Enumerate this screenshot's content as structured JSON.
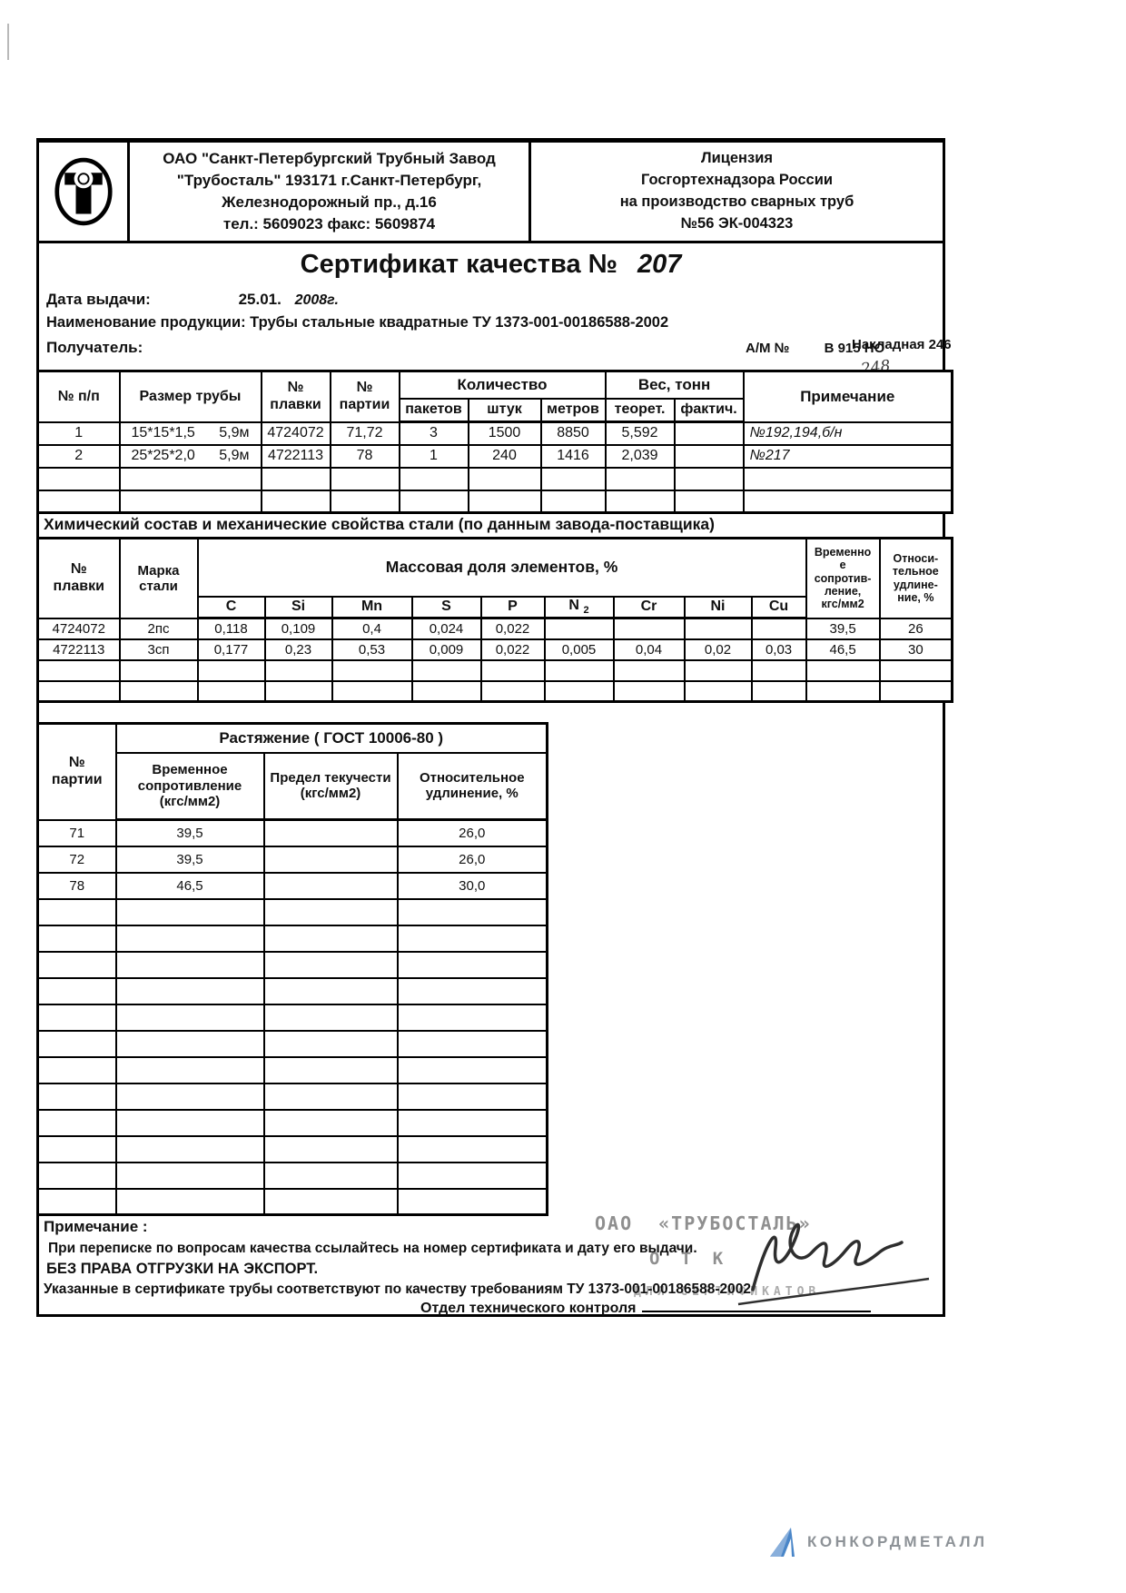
{
  "header": {
    "company": [
      "ОАО \"Санкт-Петербургский Трубный Завод",
      "\"Трубосталь\"  193171  г.Санкт-Петербург,",
      "Железнодорожный пр., д.16",
      "тел.: 5609023   факс: 5609874"
    ],
    "license": [
      "Лицензия",
      "Госгортехнадзора России",
      "на производство сварных труб",
      "№56   ЭК-004323"
    ]
  },
  "title": {
    "label": "Сертификат качества №",
    "number": "207"
  },
  "meta": {
    "date_label": "Дата выдачи:",
    "date_value": "25.01.",
    "date_year": "2008г.",
    "product_line": "Наименование продукции: Трубы стальные квадратные ТУ 1373-001-00186588-2002",
    "receiver_label": "Получатель:",
    "am_label": "А/М №",
    "am_value": "В 915 НО",
    "invoice": "Накладная 246",
    "invoice_hw": "248"
  },
  "main_table": {
    "h_num": "№ п/п",
    "h_size": "Размер трубы",
    "h_melt": "№\nплавки",
    "h_party": "№\nпартии",
    "h_qty": "Количество",
    "h_packs": "пакетов",
    "h_pcs": "штук",
    "h_m": "метров",
    "h_weight": "Вес, тонн",
    "h_theor": "теорет.",
    "h_fact": "фактич.",
    "h_note": "Примечание",
    "rows": [
      {
        "num": "1",
        "size": "15*15*1,5",
        "len": "5,9м",
        "melt": "4724072",
        "party": "71,72",
        "packs": "3",
        "pcs": "1500",
        "m": "8850",
        "theor": "5,592",
        "fact": "",
        "note": "№192,194,б/н"
      },
      {
        "num": "2",
        "size": "25*25*2,0",
        "len": "5,9м",
        "melt": "4722113",
        "party": "78",
        "packs": "1",
        "pcs": "240",
        "m": "1416",
        "theor": "2,039",
        "fact": "",
        "note": "№217"
      }
    ]
  },
  "chem": {
    "section_title": "Химический состав и механические свойства стали (по данным завода-поставщика)",
    "h_melt": "№\nплавки",
    "h_grade": "Марка\nстали",
    "h_mass": "Массовая доля элементов, %",
    "elements": [
      "C",
      "Si",
      "Mn",
      "S",
      "P",
      "N",
      "Cr",
      "Ni",
      "Cu"
    ],
    "n_sub": "2",
    "h_tensile": "Временно\nе\nсопротив-\nление,\nкгс/мм2",
    "h_elong": "Относи-\nтельное\nудлине-\nние, %",
    "rows": [
      {
        "melt": "4724072",
        "grade": "2пс",
        "c": "0,118",
        "si": "0,109",
        "mn": "0,4",
        "s": "0,024",
        "p": "0,022",
        "n": "",
        "cr": "",
        "ni": "",
        "cu": "",
        "tensile": "39,5",
        "elong": "26"
      },
      {
        "melt": "4722113",
        "grade": "3сп",
        "c": "0,177",
        "si": "0,23",
        "mn": "0,53",
        "s": "0,009",
        "p": "0,022",
        "n": "0,005",
        "cr": "0,04",
        "ni": "0,02",
        "cu": "0,03",
        "tensile": "46,5",
        "elong": "30"
      }
    ]
  },
  "tension": {
    "title": "Растяжение ( ГОСТ 10006-80 )",
    "h_party": "№\nпартии",
    "h_tensile": "Временное\nсопротивление\n(кгс/мм2)",
    "h_yield": "Предел текучести\n(кгс/мм2)",
    "h_elong": "Относительное\nудлинение, %",
    "rows": [
      {
        "party": "71",
        "tensile": "39,5",
        "yield": "",
        "elong": "26,0"
      },
      {
        "party": "72",
        "tensile": "39,5",
        "yield": "",
        "elong": "26,0"
      },
      {
        "party": "78",
        "tensile": "46,5",
        "yield": "",
        "elong": "30,0"
      }
    ]
  },
  "notes": {
    "label": "Примечание :",
    "line1": "При переписке по вопросам качества ссылайтесь на номер сертификата и дату его выдачи.",
    "line2": "БЕЗ ПРАВА ОТГРУЗКИ НА ЭКСПОРТ.",
    "line3": "Указанные в сертификате трубы соответствуют по  качеству требованиям ТУ 1373-001-00186588-2002",
    "dept": "Отдел технического контроля"
  },
  "stamp": {
    "org": "ОАО",
    "name": "«ТРУБОСТАЛЬ»",
    "otk": "О Т К",
    "certs": "ДЛЯ СЕРТИФИКАТОВ"
  },
  "footer": {
    "brand": "КОНКОРДМЕТАЛЛ"
  },
  "colors": {
    "stamp": "#8f8f8f",
    "footer_text": "#8d9297",
    "footer_blue": "#4a86c8"
  }
}
